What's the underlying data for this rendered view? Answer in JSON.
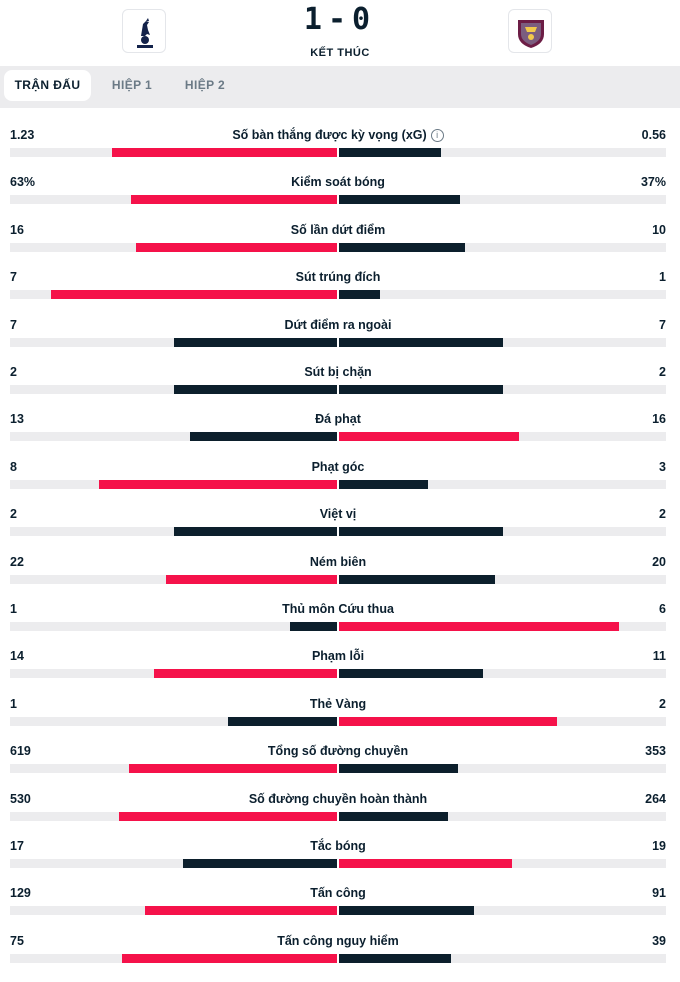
{
  "match": {
    "home_score": "1",
    "away_score": "0",
    "separator": "-",
    "status": "KẾT THÚC"
  },
  "tabs": [
    {
      "label": "TRẬN ĐẤU",
      "active": true
    },
    {
      "label": "HIỆP 1",
      "active": false
    },
    {
      "label": "HIỆP 2",
      "active": false
    }
  ],
  "colors": {
    "winner_bar": "#f5124a",
    "other_bar": "#0c1f2c",
    "track": "#ececee"
  },
  "stats": [
    {
      "label": "Số bàn thắng được kỳ vọng (xG)",
      "home": "1.23",
      "away": "0.56",
      "home_val": 1.23,
      "away_val": 0.56,
      "info": true
    },
    {
      "label": "Kiểm soát bóng",
      "home": "63%",
      "away": "37%",
      "home_val": 63,
      "away_val": 37
    },
    {
      "label": "Số lần dứt điểm",
      "home": "16",
      "away": "10",
      "home_val": 16,
      "away_val": 10
    },
    {
      "label": "Sút trúng đích",
      "home": "7",
      "away": "1",
      "home_val": 7,
      "away_val": 1
    },
    {
      "label": "Dứt điểm ra ngoài",
      "home": "7",
      "away": "7",
      "home_val": 7,
      "away_val": 7
    },
    {
      "label": "Sút bị chặn",
      "home": "2",
      "away": "2",
      "home_val": 2,
      "away_val": 2
    },
    {
      "label": "Đá phạt",
      "home": "13",
      "away": "16",
      "home_val": 13,
      "away_val": 16
    },
    {
      "label": "Phạt góc",
      "home": "8",
      "away": "3",
      "home_val": 8,
      "away_val": 3
    },
    {
      "label": "Việt vị",
      "home": "2",
      "away": "2",
      "home_val": 2,
      "away_val": 2
    },
    {
      "label": "Ném biên",
      "home": "22",
      "away": "20",
      "home_val": 22,
      "away_val": 20
    },
    {
      "label": "Thủ môn Cứu thua",
      "home": "1",
      "away": "6",
      "home_val": 1,
      "away_val": 6
    },
    {
      "label": "Phạm lỗi",
      "home": "14",
      "away": "11",
      "home_val": 14,
      "away_val": 11
    },
    {
      "label": "Thẻ Vàng",
      "home": "1",
      "away": "2",
      "home_val": 1,
      "away_val": 2
    },
    {
      "label": "Tổng số đường chuyền",
      "home": "619",
      "away": "353",
      "home_val": 619,
      "away_val": 353
    },
    {
      "label": "Số đường chuyền hoàn thành",
      "home": "530",
      "away": "264",
      "home_val": 530,
      "away_val": 264
    },
    {
      "label": "Tắc bóng",
      "home": "17",
      "away": "19",
      "home_val": 17,
      "away_val": 19
    },
    {
      "label": "Tấn công",
      "home": "129",
      "away": "91",
      "home_val": 129,
      "away_val": 91
    },
    {
      "label": "Tấn công nguy hiểm",
      "home": "75",
      "away": "39",
      "home_val": 75,
      "away_val": 39
    }
  ]
}
